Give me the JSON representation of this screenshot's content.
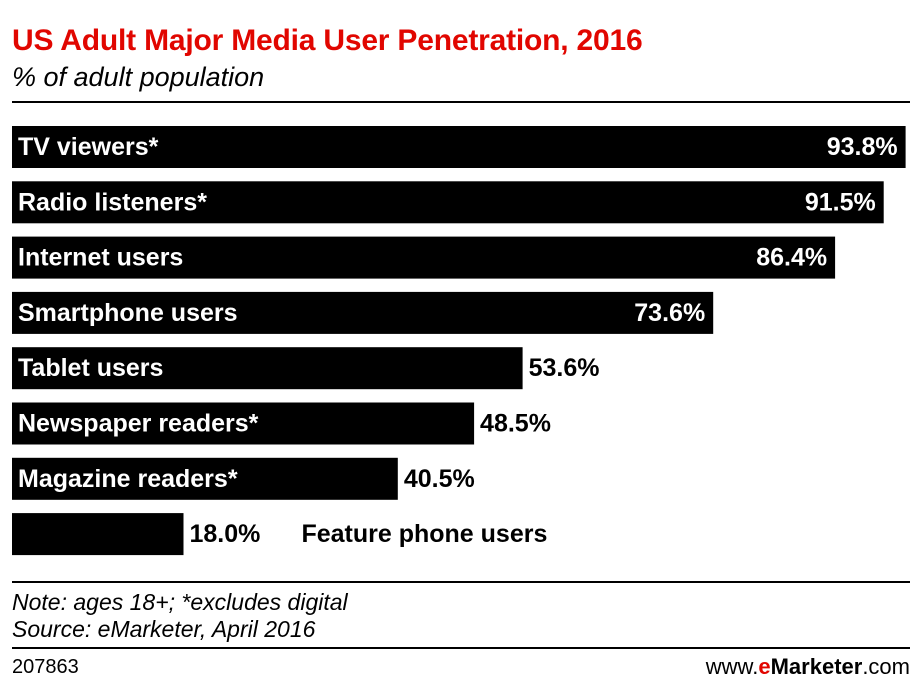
{
  "title": "US Adult Major Media User Penetration, 2016",
  "subtitle": "% of adult population",
  "footer": {
    "note": "Note: ages 18+; *excludes digital",
    "source": "Source: eMarketer, April 2016",
    "chart_id": "207863",
    "brand_prefix": "www.",
    "brand_e": "e",
    "brand_name": "Marketer",
    "brand_suffix": ".com"
  },
  "colors": {
    "bar": "#000000",
    "title": "#e10600",
    "bar_label": "#ffffff"
  },
  "chart_data": {
    "type": "bar",
    "orientation": "horizontal",
    "categories": [
      "TV viewers*",
      "Radio listeners*",
      "Internet users",
      "Smartphone users",
      "Tablet users",
      "Newspaper readers*",
      "Magazine readers*",
      "Feature phone users"
    ],
    "values": [
      93.8,
      91.5,
      86.4,
      73.6,
      53.6,
      48.5,
      40.5,
      18.0
    ],
    "value_labels": [
      "93.8%",
      "91.5%",
      "86.4%",
      "73.6%",
      "53.6%",
      "48.5%",
      "40.5%",
      "18.0%"
    ],
    "xlim": [
      0,
      100
    ],
    "grid": false,
    "legend": "none"
  }
}
